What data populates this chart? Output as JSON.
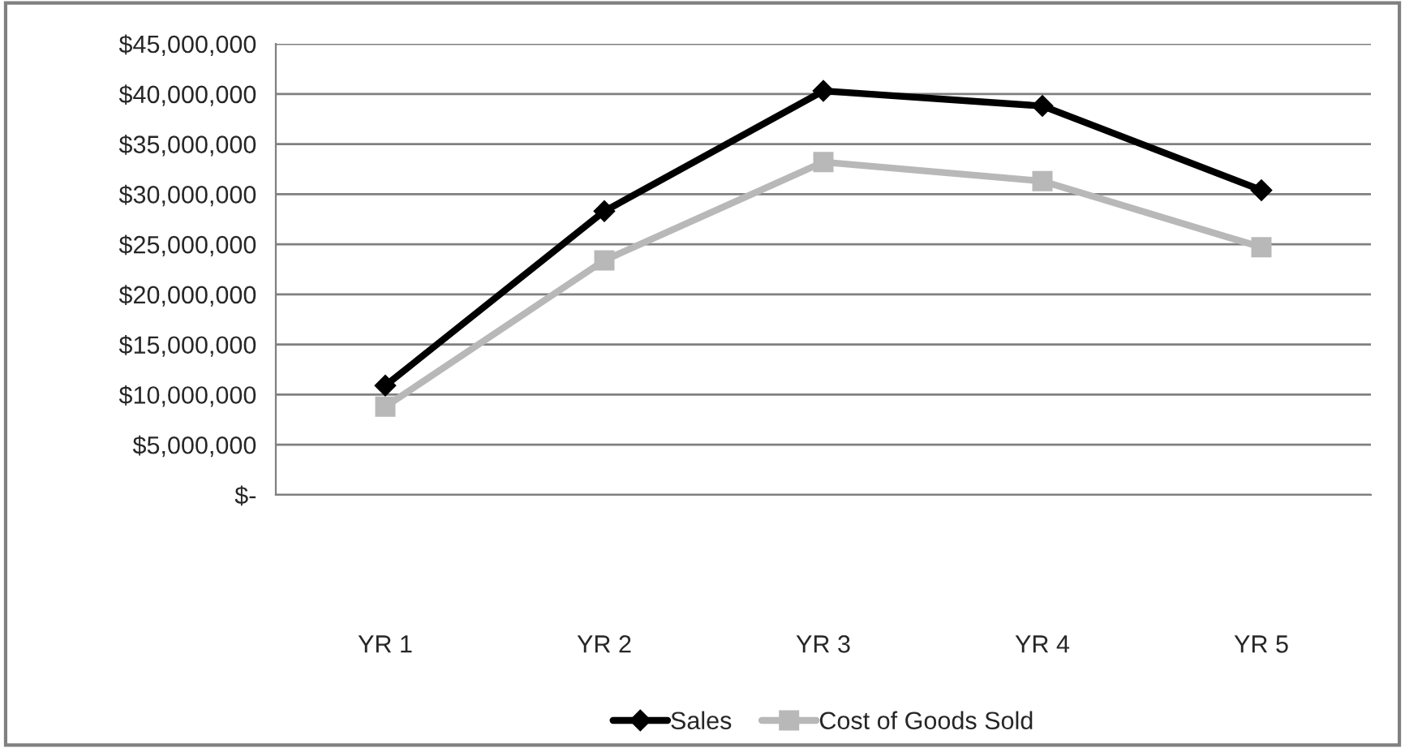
{
  "chart_data": {
    "type": "line",
    "categories": [
      "YR 1",
      "YR 2",
      "YR 3",
      "YR 4",
      "YR 5"
    ],
    "series": [
      {
        "name": "Sales",
        "color": "#000000",
        "marker": "diamond",
        "values": [
          10900000,
          28300000,
          40300000,
          38800000,
          30400000
        ]
      },
      {
        "name": "Cost of Goods Sold",
        "color": "#b8b8b8",
        "marker": "square",
        "values": [
          8800000,
          23400000,
          33200000,
          31300000,
          24700000
        ]
      }
    ],
    "ylim": [
      0,
      45000000
    ],
    "yticks": [
      {
        "value": 0,
        "label": "$-"
      },
      {
        "value": 5000000,
        "label": "$5,000,000"
      },
      {
        "value": 10000000,
        "label": "$10,000,000"
      },
      {
        "value": 15000000,
        "label": "$15,000,000"
      },
      {
        "value": 20000000,
        "label": "$20,000,000"
      },
      {
        "value": 25000000,
        "label": "$25,000,000"
      },
      {
        "value": 30000000,
        "label": "$30,000,000"
      },
      {
        "value": 35000000,
        "label": "$35,000,000"
      },
      {
        "value": 40000000,
        "label": "$40,000,000"
      },
      {
        "value": 45000000,
        "label": "$45,000,000"
      }
    ],
    "grid": "y",
    "legend": "bottom",
    "line_style": "solid"
  }
}
